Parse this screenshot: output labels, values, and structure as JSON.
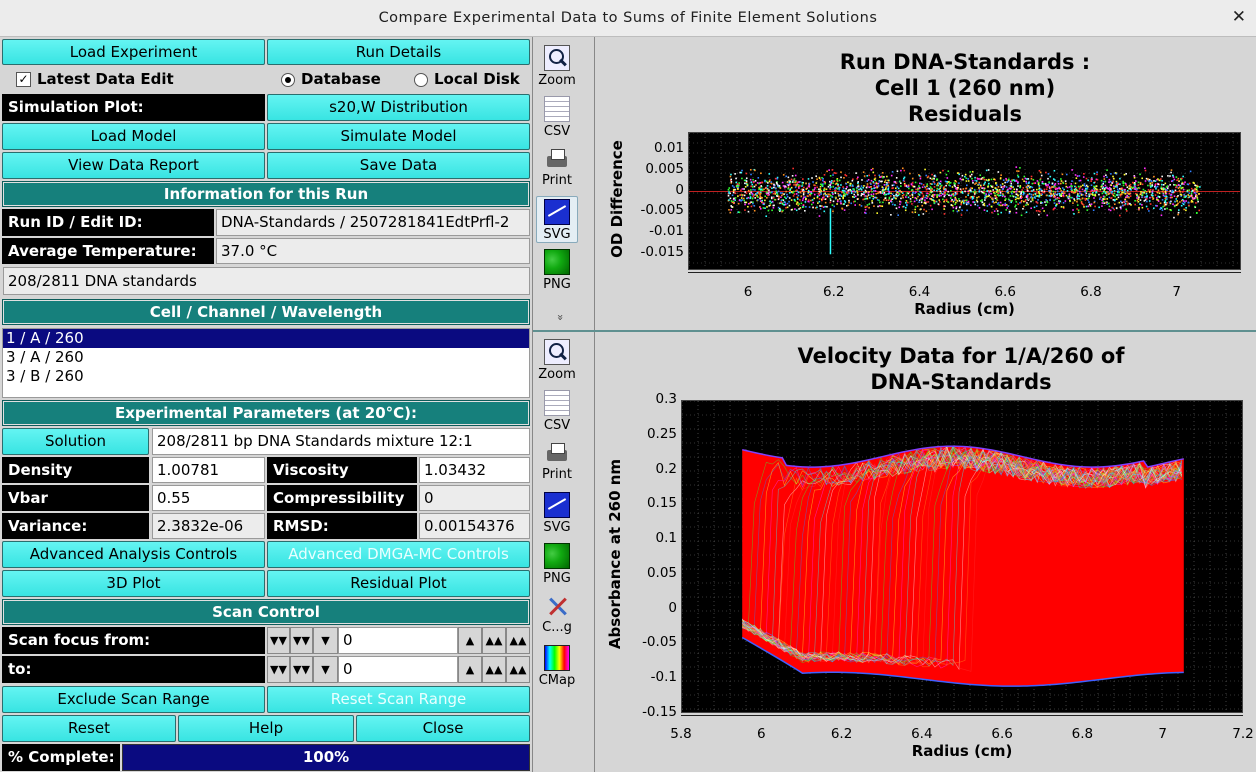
{
  "window": {
    "title": "Compare Experimental Data to Sums of Finite Element Solutions",
    "close_glyph": "✕"
  },
  "left": {
    "load_experiment": "Load Experiment",
    "run_details": "Run Details",
    "latest_data_edit": "Latest Data Edit",
    "database": "Database",
    "local_disk": "Local Disk",
    "simulation_plot_label": "Simulation Plot:",
    "simulation_plot_value": "s20,W Distribution",
    "load_model": "Load Model",
    "simulate_model": "Simulate Model",
    "view_data_report": "View Data Report",
    "save_data": "Save Data",
    "info_header": "Information for this Run",
    "run_id_label": "Run ID / Edit ID:",
    "run_id_value": "DNA-Standards / 2507281841EdtPrfl-2",
    "avg_temp_label": "Average Temperature:",
    "avg_temp_value": "37.0 °C",
    "description": "208/2811 DNA standards",
    "ccw_header": "Cell / Channel / Wavelength",
    "ccw_items": [
      "1 / A / 260",
      "3 / A / 260",
      "3 / B / 260"
    ],
    "exp_header": "Experimental Parameters (at 20°C):",
    "solution_btn": "Solution",
    "solution_value": "208/2811 bp DNA Standards mixture 12:1",
    "density_label": "Density",
    "density_value": "1.00781",
    "viscosity_label": "Viscosity",
    "viscosity_value": "1.03432",
    "vbar_label": "Vbar",
    "vbar_value": "0.55",
    "compress_label": "Compressibility",
    "compress_value": "0",
    "variance_label": "Variance:",
    "variance_value": "2.3832e-06",
    "rmsd_label": "RMSD:",
    "rmsd_value": "0.00154376",
    "adv_analysis": "Advanced Analysis Controls",
    "adv_dmga": "Advanced DMGA-MC Controls",
    "plot3d": "3D Plot",
    "residual_plot": "Residual Plot",
    "scan_header": "Scan Control",
    "scan_from_label": "Scan focus from:",
    "scan_from_value": "0",
    "scan_to_label": "to:",
    "scan_to_value": "0",
    "exclude_range": "Exclude Scan Range",
    "reset_range": "Reset Scan Range",
    "reset": "Reset",
    "help": "Help",
    "close": "Close",
    "complete_label": "% Complete:",
    "complete_text": "100%",
    "complete_fraction": 1.0
  },
  "toolbars": {
    "top": [
      "Zoom",
      "CSV",
      "Print",
      "SVG",
      "PNG"
    ],
    "top_more": "»",
    "bottom": [
      "Zoom",
      "CSV",
      "Print",
      "SVG",
      "PNG",
      "C...g",
      "CMap"
    ]
  },
  "plots": {
    "residuals": {
      "title_lines": [
        "Run DNA-Standards :",
        "Cell 1 (260 nm)",
        "Residuals"
      ],
      "xlabel": "Radius (cm)",
      "ylabel": "OD Difference",
      "xticks": [
        "6",
        "6.2",
        "6.4",
        "6.6",
        "6.8",
        "7"
      ],
      "yticks": [
        "0.01",
        "0.005",
        "0",
        "-0.005",
        "-0.01",
        "-0.015"
      ]
    },
    "velocity": {
      "title_lines": [
        "Velocity Data for 1/A/260 of",
        "DNA-Standards"
      ],
      "xlabel": "Radius (cm)",
      "ylabel": "Absorbance at 260 nm",
      "xticks": [
        "5.8",
        "6",
        "6.2",
        "6.4",
        "6.6",
        "6.8",
        "7",
        "7.2"
      ],
      "yticks": [
        "0.3",
        "0.25",
        "0.2",
        "0.15",
        "0.1",
        "0.05",
        "0",
        "-0.05",
        "-0.1",
        "-0.15"
      ]
    }
  },
  "chart_data": [
    {
      "type": "scatter",
      "title": "Run DNA-Standards : Cell 1 (260 nm) Residuals",
      "xlabel": "Radius (cm)",
      "ylabel": "OD Difference",
      "xlim": [
        5.86,
        7.15
      ],
      "ylim": [
        -0.019,
        0.014
      ],
      "data_x_range": [
        5.95,
        7.05
      ],
      "residual_band": [
        -0.006,
        0.006
      ],
      "grid": true,
      "background": "#000000"
    },
    {
      "type": "line",
      "title": "Velocity Data for 1/A/260 of DNA-Standards",
      "xlabel": "Radius (cm)",
      "ylabel": "Absorbance at 260 nm",
      "xlim": [
        5.8,
        7.2
      ],
      "ylim": [
        -0.15,
        0.3
      ],
      "data_x_range": [
        5.95,
        7.05
      ],
      "plateau_range": [
        -0.1,
        0.23
      ],
      "grid": true,
      "background": "#000000",
      "fit_color": "#ff0000"
    }
  ]
}
